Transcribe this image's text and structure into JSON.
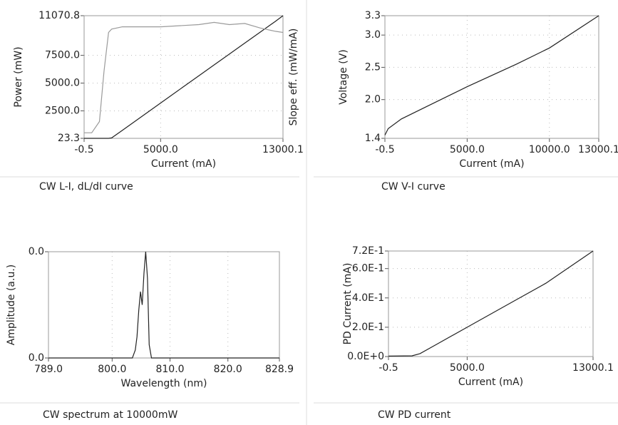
{
  "chart_data": [
    {
      "type": "line",
      "caption": "CW L-I, dL/dI curve",
      "xlabel": "Current (mA)",
      "ylabel": "Power (mW)",
      "y2label": "Slope eff. (mW/mA)",
      "x": [
        -0.5,
        500,
        1000,
        1300,
        1600,
        1800,
        2500,
        5000,
        7500,
        8500,
        9500,
        10500,
        11500,
        12500,
        13000.1
      ],
      "series": [
        {
          "name": "Power",
          "color": "#222222",
          "values": [
            23.3,
            23.3,
            23.3,
            23.3,
            23.3,
            60,
            750,
            3200,
            5660,
            6640,
            7620,
            8600,
            9580,
            10560,
            11070.8
          ]
        },
        {
          "name": "Slope eff.",
          "color": "#9a9a9a",
          "axis": "y2",
          "values": [
            0.05,
            0.05,
            0.15,
            0.6,
            0.95,
            0.98,
            1.0,
            1.0,
            1.02,
            1.04,
            1.02,
            1.03,
            0.99,
            0.96,
            0.95
          ]
        }
      ],
      "xlim": [
        -0.5,
        13000.1
      ],
      "xticks": [
        -0.5,
        {
          "value": 5000,
          "label": "5000.0"
        },
        13000.1
      ],
      "ylim": [
        23.3,
        11070.8
      ],
      "yticks": [
        23.3,
        {
          "value": 2500,
          "label": "2500.0"
        },
        {
          "value": 5000,
          "label": "5000.0"
        },
        {
          "value": 7500,
          "label": "7500.0"
        },
        11070.8
      ],
      "y2lim": [
        0,
        1.1
      ],
      "grid": true
    },
    {
      "type": "line",
      "caption": "CW V-I curve",
      "xlabel": "Current (mA)",
      "ylabel": "Voltage (V)",
      "x": [
        -0.5,
        200,
        1000,
        3000,
        5000,
        8000,
        10000,
        13000.1
      ],
      "series": [
        {
          "name": "Voltage",
          "color": "#222222",
          "values": [
            1.45,
            1.55,
            1.7,
            1.95,
            2.2,
            2.55,
            2.8,
            3.3
          ]
        }
      ],
      "xlim": [
        -0.5,
        13000.1
      ],
      "xticks": [
        -0.5,
        {
          "value": 5000,
          "label": "5000.0"
        },
        {
          "value": 10000,
          "label": "10000.0"
        },
        13000.1
      ],
      "ylim": [
        1.4,
        3.3
      ],
      "yticks": [
        1.4,
        {
          "value": 2,
          "label": "2.0"
        },
        2.5,
        {
          "value": 3,
          "label": "3.0"
        },
        3.3
      ],
      "grid": true
    },
    {
      "type": "line",
      "caption": "CW spectrum at 10000mW",
      "xlabel": "Wavelength (nm)",
      "ylabel": "Amplitude (a.u.)",
      "x": [
        789,
        803.5,
        804,
        804.3,
        804.6,
        804.9,
        805.2,
        805.5,
        805.8,
        806.1,
        806.4,
        806.8,
        828.9
      ],
      "series": [
        {
          "name": "Amplitude",
          "color": "#222222",
          "values": [
            0,
            0,
            0.003,
            0.008,
            0.018,
            0.025,
            0.02,
            0.032,
            0.04,
            0.03,
            0.005,
            0,
            0
          ]
        }
      ],
      "xlim": [
        789,
        828.9
      ],
      "xticks": [
        {
          "value": 789,
          "label": "789.0"
        },
        {
          "value": 800,
          "label": "800.0"
        },
        {
          "value": 810,
          "label": "810.0"
        },
        {
          "value": 820,
          "label": "820.0"
        },
        828.9
      ],
      "ylim": [
        0,
        0.04
      ],
      "yticks": [
        {
          "value": 0,
          "label": "0.0"
        },
        {
          "value": 0.04,
          "label": "0.0"
        }
      ],
      "grid": true
    },
    {
      "type": "line",
      "caption": "CW PD current",
      "xlabel": "Current (mA)",
      "ylabel": "PD Current (mA)",
      "x": [
        -0.5,
        1500,
        2000,
        3000,
        5000,
        8000,
        10000,
        13000.1
      ],
      "series": [
        {
          "name": "PD Current",
          "color": "#222222",
          "values": [
            0.003,
            0.005,
            0.02,
            0.08,
            0.2,
            0.38,
            0.5,
            0.72
          ]
        }
      ],
      "xlim": [
        -0.5,
        13000.1
      ],
      "xticks": [
        -0.5,
        {
          "value": 5000,
          "label": "5000.0"
        },
        13000.1
      ],
      "ylim": [
        0,
        0.72
      ],
      "yticks": [
        {
          "value": 0,
          "label": "0.0E+0"
        },
        {
          "value": 0.2,
          "label": "2.0E-1"
        },
        {
          "value": 0.4,
          "label": "4.0E-1"
        },
        {
          "value": 0.6,
          "label": "6.0E-1"
        },
        {
          "value": 0.72,
          "label": "7.2E-1"
        }
      ],
      "grid": true
    }
  ]
}
